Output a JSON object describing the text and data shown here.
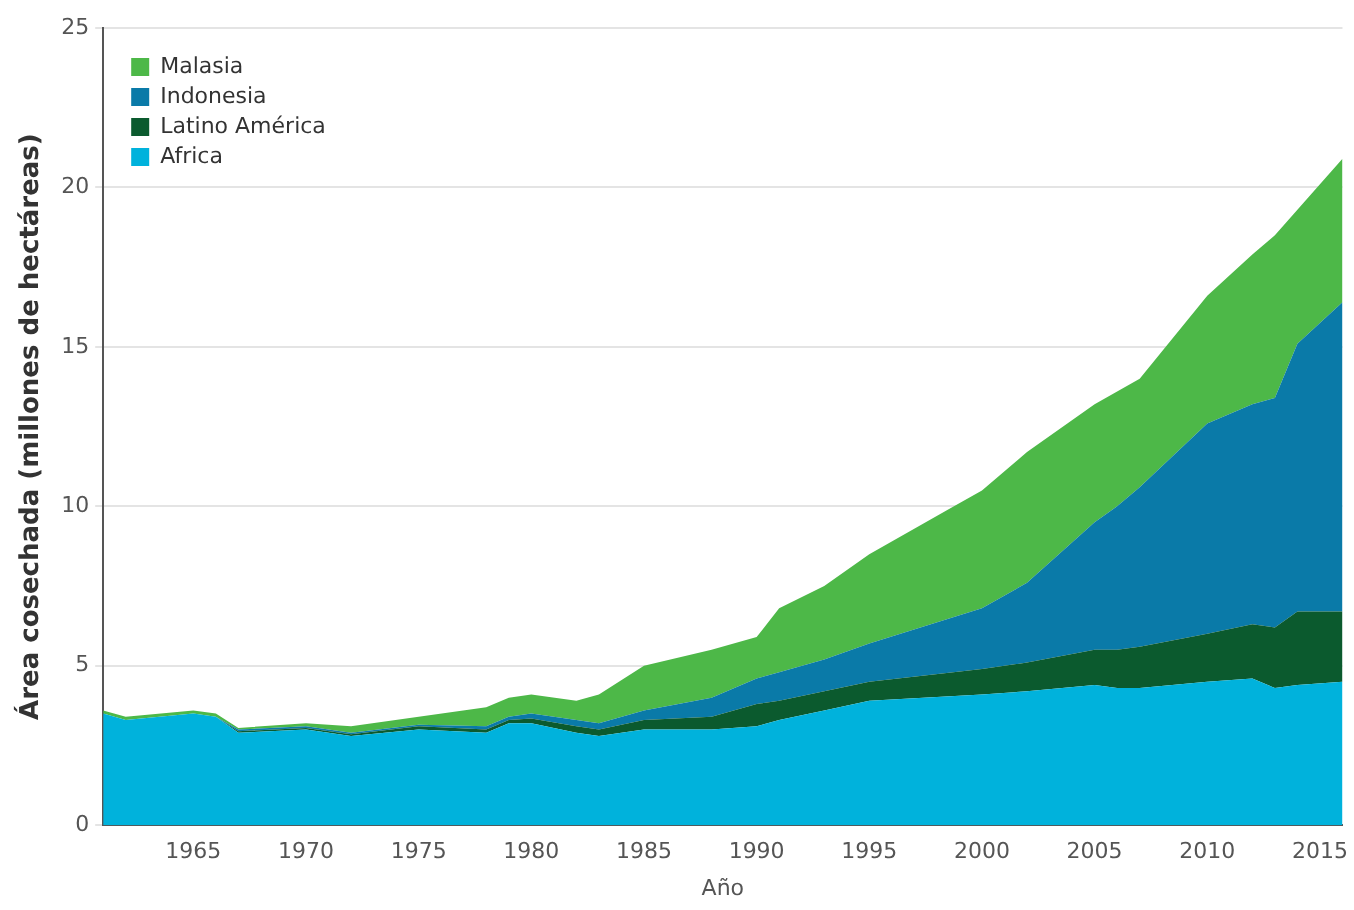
{
  "chart_data": {
    "type": "area",
    "stacked": true,
    "xlabel": "Año",
    "ylabel": "Área cosechada (millones de hectáreas)",
    "x": [
      1961,
      1962,
      1965,
      1966,
      1967,
      1970,
      1972,
      1975,
      1978,
      1979,
      1980,
      1982,
      1983,
      1985,
      1988,
      1990,
      1991,
      1993,
      1995,
      2000,
      2002,
      2005,
      2006,
      2007,
      2010,
      2012,
      2013,
      2014,
      2016
    ],
    "series": [
      {
        "name": "Africa",
        "color": "#00b2dc",
        "values": [
          3.5,
          3.3,
          3.5,
          3.4,
          2.9,
          3.0,
          2.8,
          3.0,
          2.9,
          3.2,
          3.2,
          2.9,
          2.8,
          3.0,
          3.0,
          3.1,
          3.3,
          3.6,
          3.9,
          4.1,
          4.2,
          4.4,
          4.3,
          4.3,
          4.5,
          4.6,
          4.3,
          4.4,
          4.5
        ]
      },
      {
        "name": "Latino América",
        "color": "#0b5a2e",
        "values": [
          0,
          0,
          0,
          0,
          0.05,
          0.05,
          0.05,
          0.1,
          0.1,
          0.1,
          0.15,
          0.2,
          0.2,
          0.3,
          0.4,
          0.7,
          0.6,
          0.6,
          0.6,
          0.8,
          0.9,
          1.1,
          1.2,
          1.3,
          1.5,
          1.7,
          1.9,
          2.3,
          2.2
        ]
      },
      {
        "name": "Indonesia",
        "color": "#0a7aa8",
        "values": [
          0,
          0,
          0,
          0,
          0.05,
          0.05,
          0.05,
          0.05,
          0.1,
          0.1,
          0.15,
          0.2,
          0.2,
          0.3,
          0.6,
          0.8,
          0.9,
          1.0,
          1.2,
          1.9,
          2.5,
          4.0,
          4.5,
          5.0,
          6.6,
          6.9,
          7.2,
          8.4,
          9.7
        ]
      },
      {
        "name": "Malasia",
        "color": "#4db848",
        "values": [
          0.1,
          0.1,
          0.1,
          0.1,
          0.05,
          0.1,
          0.2,
          0.25,
          0.6,
          0.6,
          0.6,
          0.6,
          0.9,
          1.4,
          1.5,
          1.3,
          2.0,
          2.3,
          2.8,
          3.7,
          4.1,
          3.7,
          3.6,
          3.4,
          4.0,
          4.7,
          5.1,
          4.2,
          4.5
        ]
      }
    ],
    "xlim": [
      1961,
      2016
    ],
    "xticks": [
      1965,
      1970,
      1975,
      1980,
      1985,
      1990,
      1995,
      2000,
      2005,
      2010,
      2015
    ],
    "ylim": [
      0,
      25
    ],
    "yticks": [
      0,
      5,
      10,
      15,
      20,
      25
    ],
    "grid": "y",
    "legend": "top left"
  }
}
